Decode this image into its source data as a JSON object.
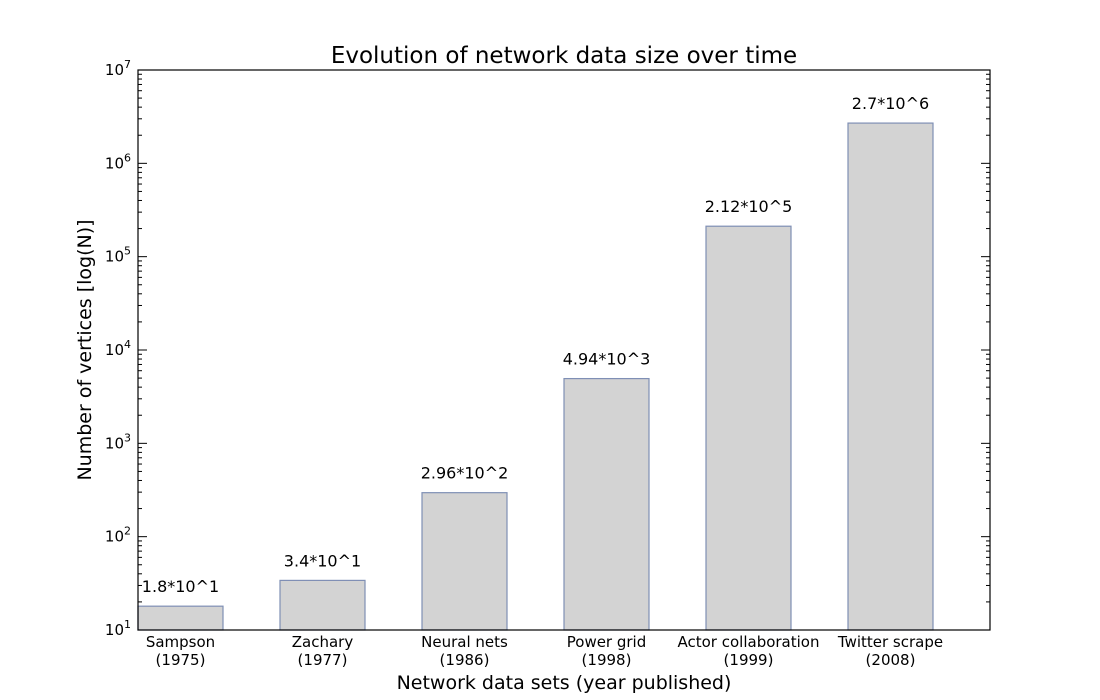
{
  "chart_data": {
    "type": "bar",
    "title": "Evolution of network data size over time",
    "xlabel": "Network data sets (year published)",
    "ylabel": "Number of vertices [log(N)]",
    "yscale": "log",
    "ylim": [
      10,
      10000000
    ],
    "ytick_base": "10",
    "ytick_exponents": [
      "1",
      "2",
      "3",
      "4",
      "5",
      "6",
      "7"
    ],
    "grid": false,
    "categories": [
      [
        "Sampson",
        "(1975)"
      ],
      [
        "Zachary",
        "(1977)"
      ],
      [
        "Neural nets",
        "(1986)"
      ],
      [
        "Power grid",
        "(1998)"
      ],
      [
        "Actor collaboration",
        "(1999)"
      ],
      [
        "Twitter scrape",
        "(2008)"
      ]
    ],
    "values": [
      18,
      34,
      296,
      4940,
      212000,
      2700000
    ],
    "data_labels": [
      "1.8*10^1",
      "3.4*10^1",
      "2.96*10^2",
      "4.94*10^3",
      "2.12*10^5",
      "2.7*10^6"
    ],
    "colors": {
      "bar_fill": "#d3d3d3",
      "bar_edge": "#7f8fb5"
    }
  }
}
